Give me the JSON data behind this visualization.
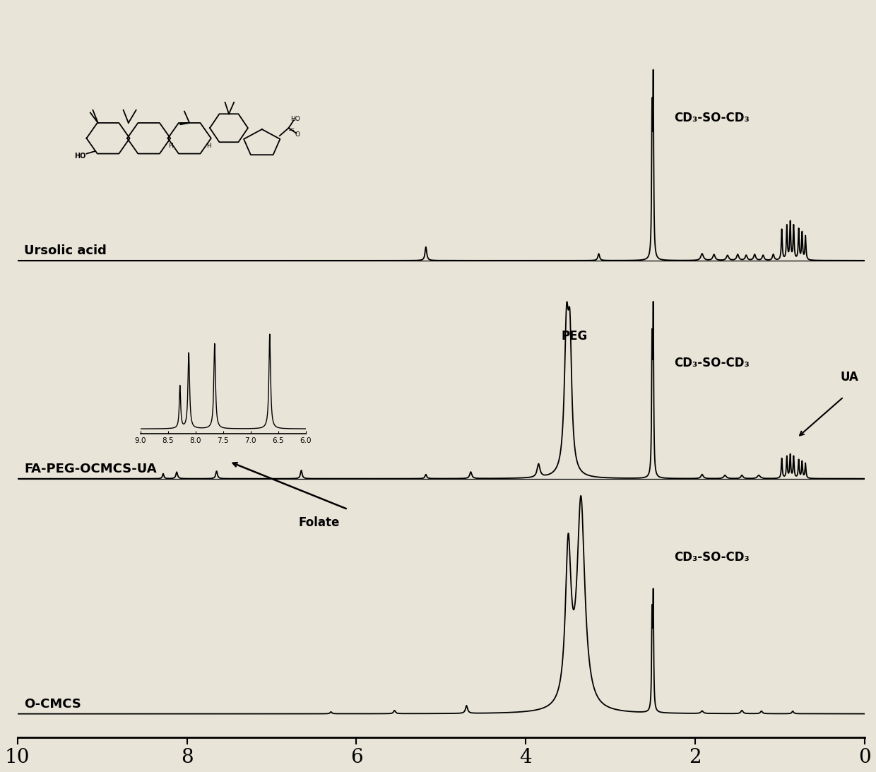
{
  "bg_color": "#e8e4d8",
  "line_color": "#000000",
  "x_min": 0,
  "x_max": 10,
  "x_ticks": [
    0,
    2,
    4,
    6,
    8,
    10
  ],
  "x_tick_labels": [
    "0",
    "2",
    "4",
    "6",
    "8",
    "10"
  ],
  "spectrum_labels": [
    "Ursolic acid",
    "FA-PEG-OCMCS-UA",
    "O-CMCS"
  ],
  "dmso_label": "CD₃-SO-CD₃",
  "peg_label": "PEG",
  "ua_label": "UA",
  "folate_label": "Folate",
  "inset_x_ticks": [
    6.0,
    6.5,
    7.0,
    7.5,
    8.0,
    8.5,
    9.0
  ],
  "inset_x_tick_labels": [
    "6.0",
    "6.5",
    "7.0",
    "7.5",
    "8.0",
    "8.5",
    "9.0"
  ]
}
